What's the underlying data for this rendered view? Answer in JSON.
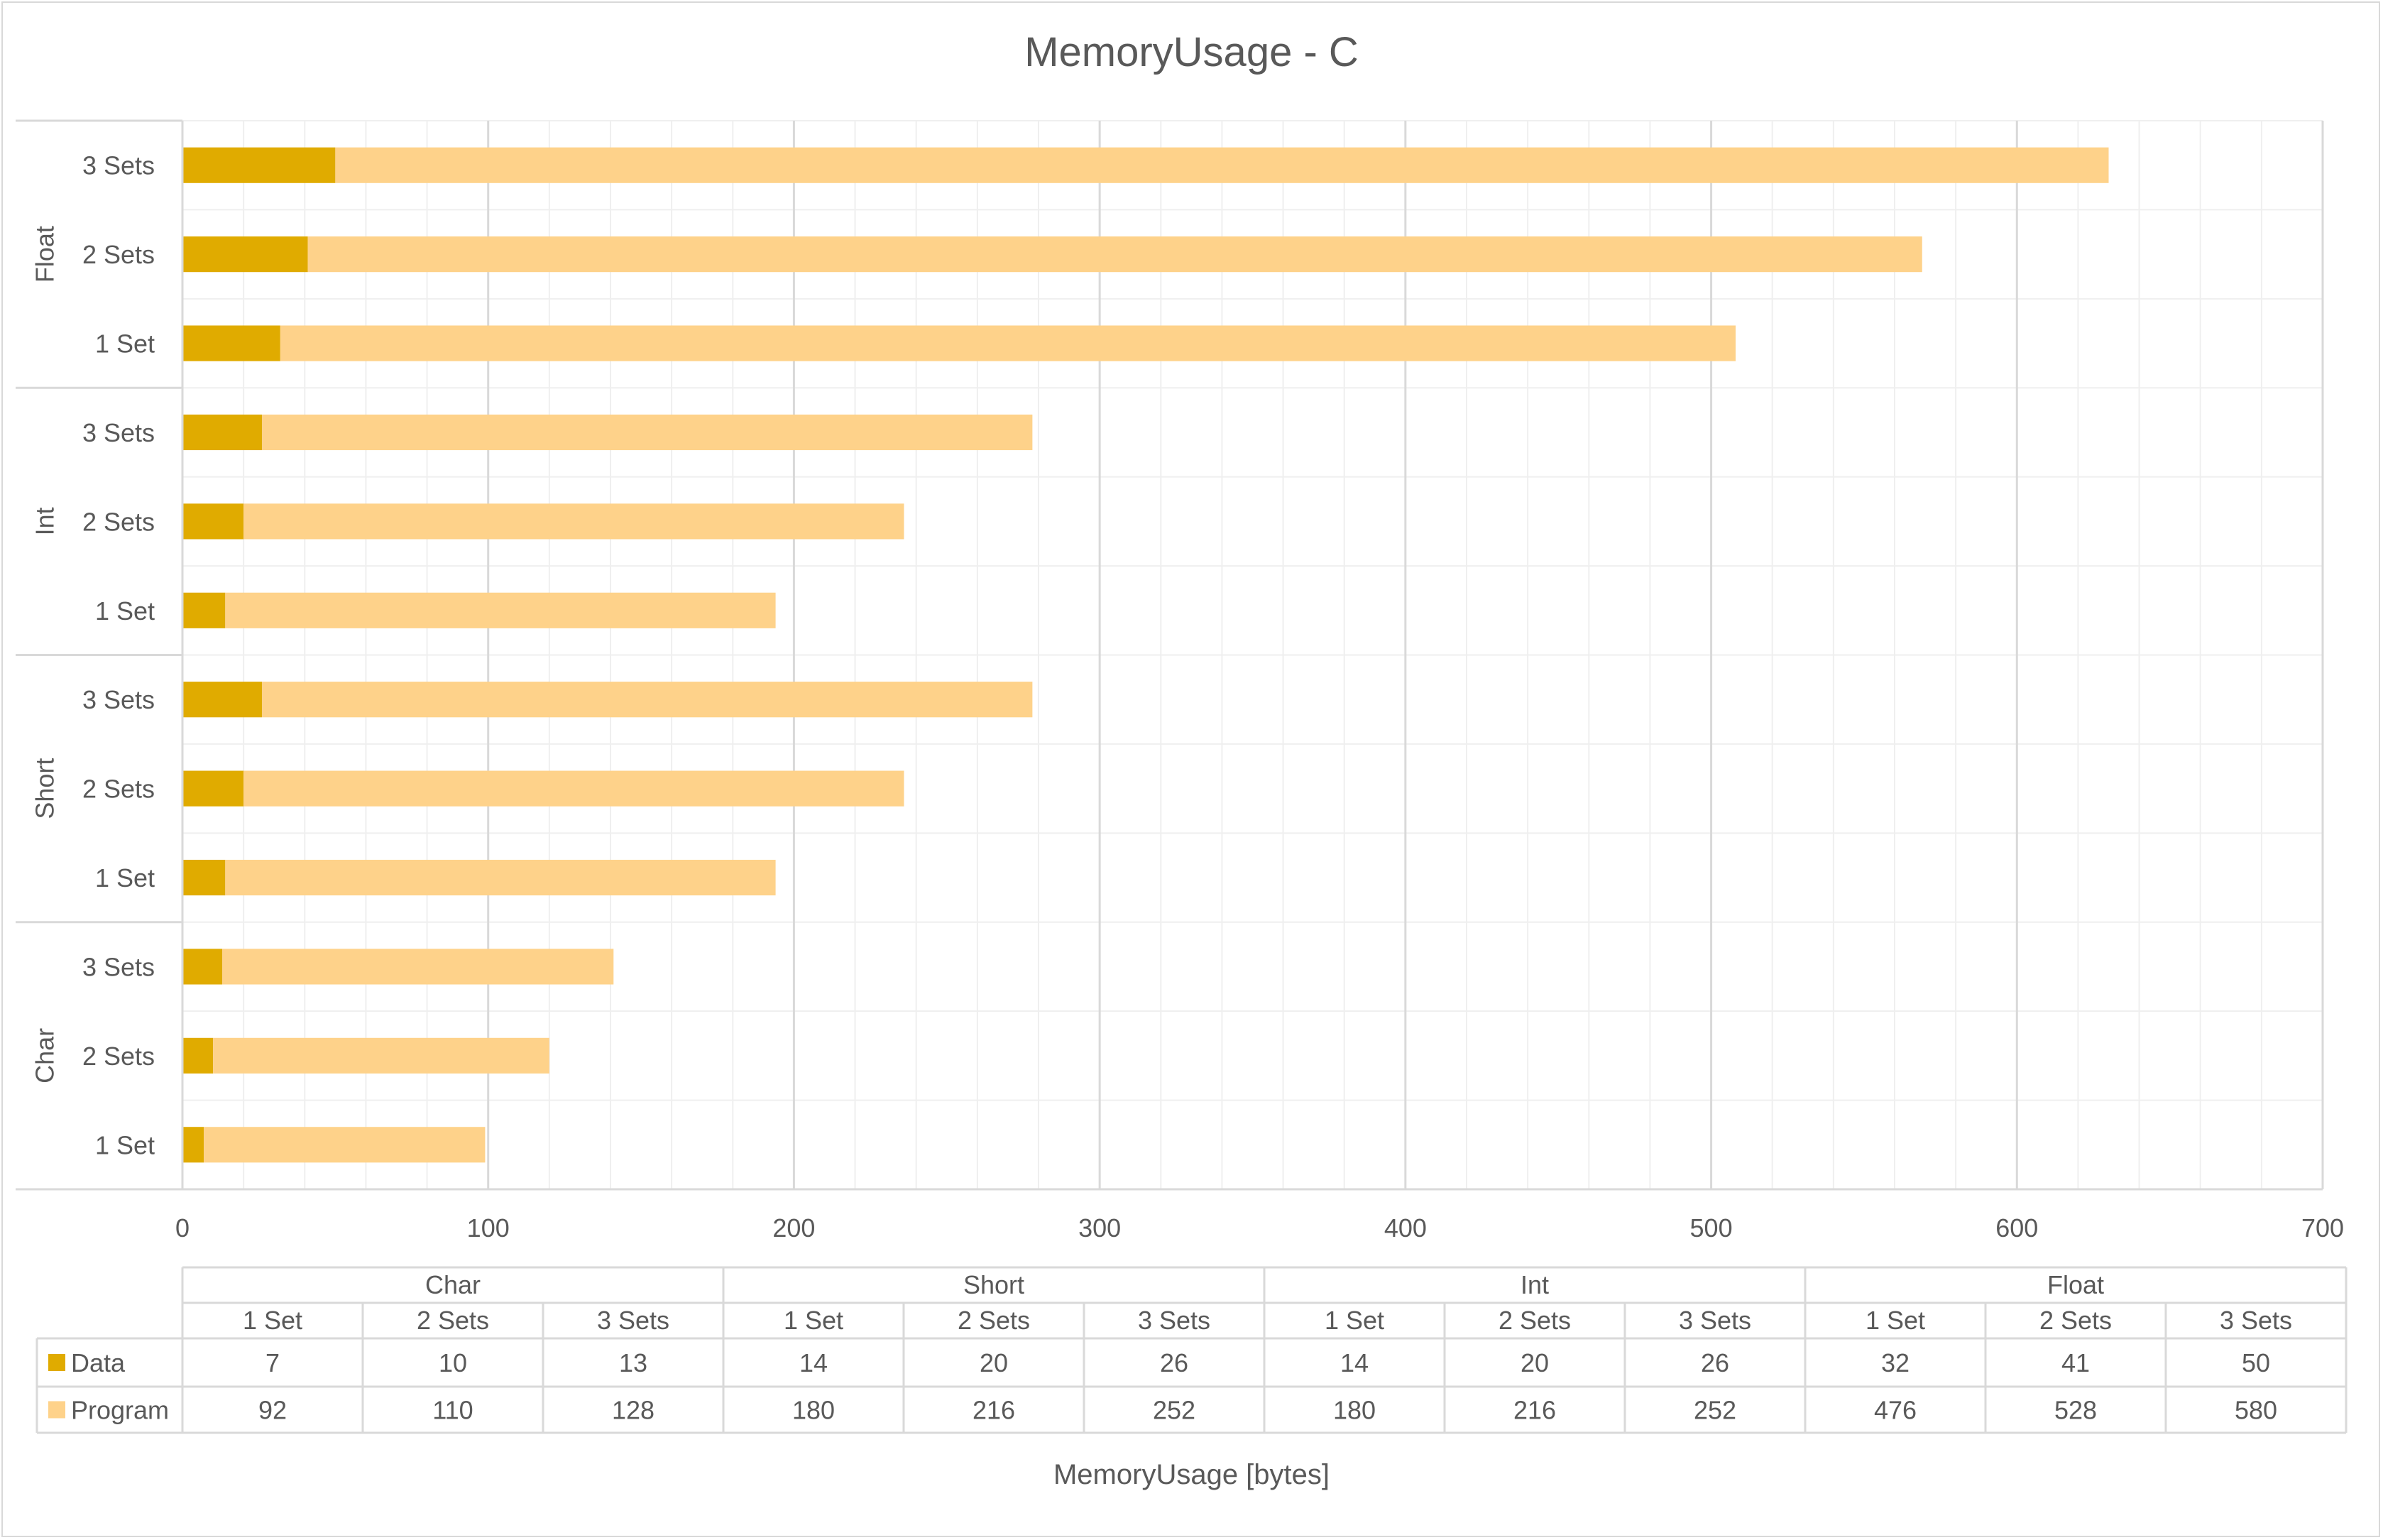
{
  "chart_data": {
    "type": "bar",
    "orientation": "horizontal",
    "stacked": true,
    "title": "MemoryUsage - C",
    "xlabel": "MemoryUsage [bytes]",
    "ylabel": "",
    "xlim": [
      0,
      700
    ],
    "x_ticks": [
      0,
      100,
      200,
      300,
      400,
      500,
      600,
      700
    ],
    "grid": true,
    "groups": [
      {
        "name": "Char",
        "categories": [
          "1 Set",
          "2 Sets",
          "3 Sets"
        ]
      },
      {
        "name": "Short",
        "categories": [
          "1 Set",
          "2 Sets",
          "3 Sets"
        ]
      },
      {
        "name": "Int",
        "categories": [
          "1 Set",
          "2 Sets",
          "3 Sets"
        ]
      },
      {
        "name": "Float",
        "categories": [
          "1 Set",
          "2 Sets",
          "3 Sets"
        ]
      }
    ],
    "series": [
      {
        "name": "Data",
        "color": "#e0ab00",
        "values": [
          7,
          10,
          13,
          14,
          20,
          26,
          14,
          20,
          26,
          32,
          41,
          50
        ]
      },
      {
        "name": "Program",
        "color": "#fed28a",
        "values": [
          92,
          110,
          128,
          180,
          216,
          252,
          180,
          216,
          252,
          476,
          528,
          580
        ]
      }
    ],
    "data_table": true
  }
}
